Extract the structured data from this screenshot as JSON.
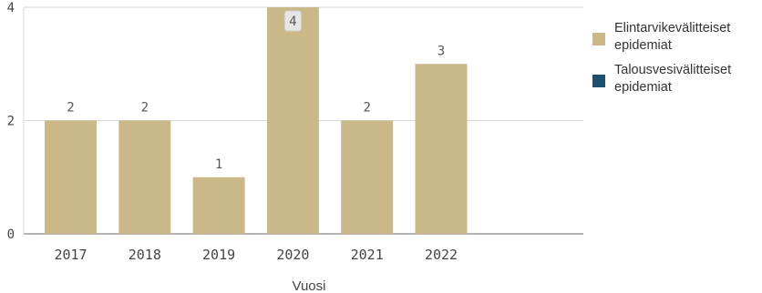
{
  "chart_data": {
    "type": "bar",
    "categories": [
      "2017",
      "2018",
      "2019",
      "2020",
      "2021",
      "2022"
    ],
    "series": [
      {
        "name": "Elintarvikevälitteiset epidemiat",
        "values": [
          2,
          2,
          1,
          4,
          2,
          3
        ],
        "color": "#cbb888"
      },
      {
        "name": "Talousvesivälitteiset epidemiat",
        "values": [
          0,
          0,
          0,
          0,
          0,
          0
        ],
        "color": "#1e4f6e"
      }
    ],
    "data_labels": [
      "2",
      "2",
      "1",
      "4",
      "2",
      "3"
    ],
    "xlabel": "Vuosi",
    "ylabel": "",
    "ylim": [
      0,
      4
    ],
    "yticks": [
      "0",
      "2",
      "4"
    ],
    "grid": true,
    "legend_position": "right"
  }
}
